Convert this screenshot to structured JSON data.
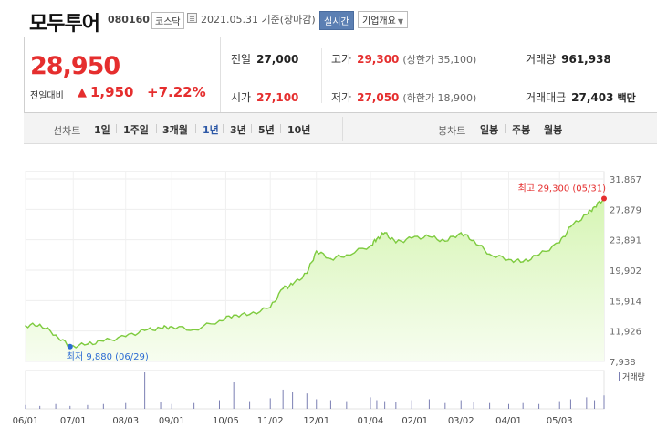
{
  "header": {
    "name": "모두투어",
    "code": "080160",
    "market": "코스닥",
    "as_of": "2021.05.31 기준(장마감)",
    "realtime_label": "실시간",
    "company_label": "기업개요"
  },
  "quote": {
    "price": "28,950",
    "change_label": "전일대비",
    "change_icon": "up-triangle-icon",
    "change_value": "1,950",
    "change_pct": "+7.22%",
    "prev_close_label": "전일",
    "prev_close": "27,000",
    "high_label": "고가",
    "high": "29,300",
    "upper_limit": "(상한가 35,100)",
    "volume_label": "거래량",
    "volume": "961,938",
    "open_label": "시가",
    "open": "27,100",
    "low_label": "저가",
    "low": "27,050",
    "lower_limit": "(하한가 18,900)",
    "amount_label": "거래대금",
    "amount": "27,403",
    "amount_unit": "백만"
  },
  "tabs": {
    "line_label": "선차트",
    "periods": [
      "1일",
      "1주일",
      "3개월",
      "1년",
      "3년",
      "5년",
      "10년"
    ],
    "active_period": "1년",
    "candle_label": "봉차트",
    "candles": [
      "일봉",
      "주봉",
      "월봉"
    ]
  },
  "chart_data": {
    "type": "area",
    "x_ticks": [
      "06/01",
      "07/01",
      "08/03",
      "09/01",
      "10/05",
      "11/02",
      "12/01",
      "01/04",
      "02/01",
      "03/02",
      "04/01",
      "05/03"
    ],
    "y_ticks": [
      "31,867",
      "27,879",
      "23,891",
      "19,902",
      "15,914",
      "11,926",
      "7,938"
    ],
    "ylim": [
      7938,
      31867
    ],
    "x": [
      "06/01",
      "06/10",
      "06/20",
      "06/29",
      "07/10",
      "07/20",
      "08/03",
      "08/15",
      "08/25",
      "09/01",
      "09/15",
      "10/01",
      "10/10",
      "10/20",
      "11/02",
      "11/10",
      "11/16",
      "11/25",
      "12/01",
      "12/10",
      "12/20",
      "01/04",
      "01/08",
      "01/13",
      "01/20",
      "01/30",
      "02/10",
      "02/20",
      "03/02",
      "03/10",
      "03/20",
      "04/01",
      "04/10",
      "04/20",
      "05/03",
      "05/10",
      "05/20",
      "05/25",
      "05/31"
    ],
    "series": [
      {
        "values": [
          12600,
          12800,
          11400,
          9880,
          10200,
          10600,
          11200,
          12000,
          12300,
          12500,
          12100,
          13300,
          14000,
          14100,
          15000,
          17500,
          18000,
          19500,
          22400,
          21400,
          21900,
          23100,
          24000,
          24800,
          23500,
          24100,
          24300,
          23700,
          24800,
          23800,
          22000,
          21300,
          21000,
          21900,
          23500,
          25600,
          27200,
          28200,
          29300
        ]
      }
    ],
    "volume": [
      4,
      3,
      5,
      3,
      4,
      5,
      6,
      38,
      7,
      5,
      6,
      9,
      28,
      8,
      11,
      20,
      18,
      16,
      10,
      9,
      8,
      12,
      9,
      8,
      7,
      9,
      10,
      6,
      9,
      7,
      6,
      5,
      6,
      5,
      8,
      10,
      12,
      9,
      14
    ],
    "high_marker": "최고 29,300 (05/31)",
    "low_marker": "최저 9,880 (06/29)",
    "volume_label": "거래량",
    "colors": {
      "line": "#7ecb3f",
      "fill": "#d6f5b4",
      "high": "#e52e2e",
      "low": "#2d6cd3",
      "volume": "#7b7fb3"
    }
  }
}
